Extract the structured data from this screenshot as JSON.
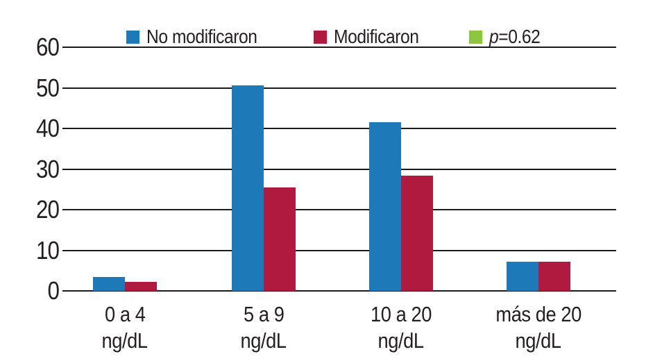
{
  "chart_data": {
    "type": "bar",
    "categories": [
      "0 a 4",
      "5 a 9",
      "10 a 20",
      "más de 20"
    ],
    "category_unit": "ng/dL",
    "series": [
      {
        "name": "No modificaron",
        "color": "#1d79b8",
        "values": [
          3.4,
          50.6,
          41.6,
          7.2
        ]
      },
      {
        "name": "Modificaron",
        "color": "#b01a3e",
        "values": [
          2.2,
          25.4,
          28.4,
          7.2
        ]
      }
    ],
    "legend_extra": {
      "italic_part": "p",
      "rest": "=0.62",
      "color": "#8cc63f"
    },
    "title": "",
    "xlabel": "",
    "ylabel": "",
    "ylim": [
      0,
      60
    ],
    "yticks": [
      "0",
      "10",
      "20",
      "30",
      "40",
      "50",
      "60"
    ],
    "grid": true,
    "legend_position": "top",
    "text_color": "#231f20",
    "gridline_color": "#1a1a1a"
  }
}
